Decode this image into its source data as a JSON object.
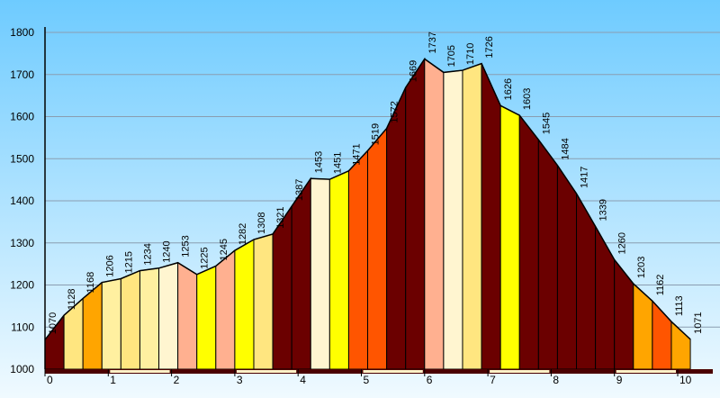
{
  "chart_data": {
    "type": "area",
    "title": "",
    "xlabel": "",
    "ylabel": "",
    "ylim": [
      1000,
      1800
    ],
    "xlim": [
      0,
      10.5
    ],
    "yticks": [
      1000,
      1100,
      1200,
      1300,
      1400,
      1500,
      1600,
      1700,
      1800
    ],
    "xticks": [
      0,
      1,
      2,
      3,
      4,
      5,
      6,
      7,
      8,
      9,
      10
    ],
    "grid": true,
    "legend": "none",
    "colors": {
      "background_top": "#6ecbff",
      "background_bottom": "#f0faff",
      "grid": "#8a9db0",
      "outline": "#000000",
      "axis_bar_dark": "#4a0000",
      "axis_bar_light": "#fff2c8"
    },
    "points": [
      {
        "x": 0.0,
        "y": 1070,
        "label": "1070",
        "color": "#6b0000"
      },
      {
        "x": 0.3,
        "y": 1128,
        "label": "1128",
        "color": "#ffe680"
      },
      {
        "x": 0.6,
        "y": 1168,
        "label": "1168",
        "color": "#ffa500"
      },
      {
        "x": 0.9,
        "y": 1206,
        "label": "1206",
        "color": "#fff0a0"
      },
      {
        "x": 1.2,
        "y": 1215,
        "label": "1215",
        "color": "#ffe680"
      },
      {
        "x": 1.5,
        "y": 1234,
        "label": "1234",
        "color": "#fff0a0"
      },
      {
        "x": 1.8,
        "y": 1240,
        "label": "1240",
        "color": "#fff5d0"
      },
      {
        "x": 2.1,
        "y": 1253,
        "label": "1253",
        "color": "#ffb090"
      },
      {
        "x": 2.4,
        "y": 1225,
        "label": "1225",
        "color": "#ffff00"
      },
      {
        "x": 2.7,
        "y": 1245,
        "label": "1245",
        "color": "#ffb090"
      },
      {
        "x": 3.0,
        "y": 1282,
        "label": "1282",
        "color": "#ffff00"
      },
      {
        "x": 3.3,
        "y": 1308,
        "label": "1308",
        "color": "#ffe680"
      },
      {
        "x": 3.6,
        "y": 1321,
        "label": "1321",
        "color": "#6b0000"
      },
      {
        "x": 3.9,
        "y": 1387,
        "label": "1387",
        "color": "#6b0000"
      },
      {
        "x": 4.2,
        "y": 1453,
        "label": "1453",
        "color": "#fff5d0"
      },
      {
        "x": 4.5,
        "y": 1451,
        "label": "1451",
        "color": "#ffff00"
      },
      {
        "x": 4.8,
        "y": 1471,
        "label": "1471",
        "color": "#ff5500"
      },
      {
        "x": 5.1,
        "y": 1519,
        "label": "1519",
        "color": "#ff5500"
      },
      {
        "x": 5.4,
        "y": 1572,
        "label": "1572",
        "color": "#6b0000"
      },
      {
        "x": 5.7,
        "y": 1669,
        "label": "1669",
        "color": "#6b0000"
      },
      {
        "x": 6.0,
        "y": 1737,
        "label": "1737",
        "color": "#ffb090"
      },
      {
        "x": 6.3,
        "y": 1705,
        "label": "1705",
        "color": "#fff5d0"
      },
      {
        "x": 6.6,
        "y": 1710,
        "label": "1710",
        "color": "#ffe680"
      },
      {
        "x": 6.9,
        "y": 1726,
        "label": "1726",
        "color": "#6b0000"
      },
      {
        "x": 7.2,
        "y": 1626,
        "label": "1626",
        "color": "#ffff00"
      },
      {
        "x": 7.5,
        "y": 1603,
        "label": "1603",
        "color": "#6b0000"
      },
      {
        "x": 7.8,
        "y": 1545,
        "label": "1545",
        "color": "#6b0000"
      },
      {
        "x": 8.1,
        "y": 1484,
        "label": "1484",
        "color": "#6b0000"
      },
      {
        "x": 8.4,
        "y": 1417,
        "label": "1417",
        "color": "#6b0000"
      },
      {
        "x": 8.7,
        "y": 1339,
        "label": "1339",
        "color": "#6b0000"
      },
      {
        "x": 9.0,
        "y": 1260,
        "label": "1260",
        "color": "#6b0000"
      },
      {
        "x": 9.3,
        "y": 1203,
        "label": "1203",
        "color": "#ffa500"
      },
      {
        "x": 9.6,
        "y": 1162,
        "label": "1162",
        "color": "#ff5500"
      },
      {
        "x": 9.9,
        "y": 1113,
        "label": "1113",
        "color": "#ffa500"
      },
      {
        "x": 10.2,
        "y": 1071,
        "label": "1071",
        "color": null
      }
    ]
  }
}
